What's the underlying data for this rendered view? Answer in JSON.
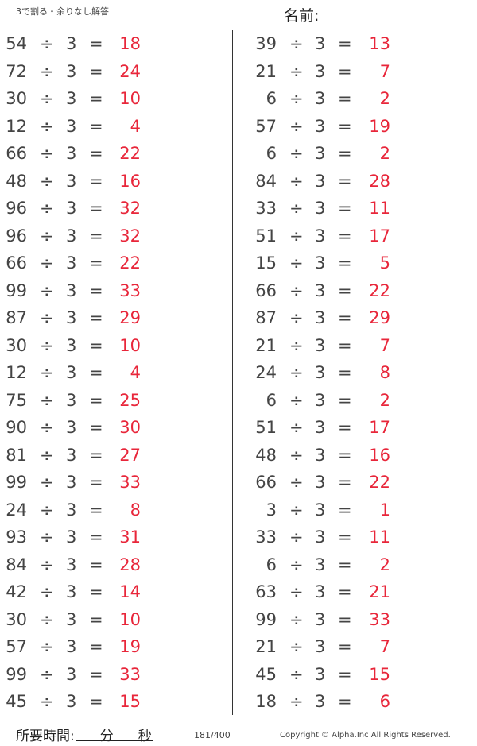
{
  "header": {
    "title": "3で割る・余りなし解答",
    "name_label": "名前:"
  },
  "colors": {
    "problem": "#444444",
    "answer": "#e8263a"
  },
  "divide_symbol": "÷",
  "equals_symbol": "=",
  "left": [
    [
      54,
      3,
      18
    ],
    [
      72,
      3,
      24
    ],
    [
      30,
      3,
      10
    ],
    [
      12,
      3,
      4
    ],
    [
      66,
      3,
      22
    ],
    [
      48,
      3,
      16
    ],
    [
      96,
      3,
      32
    ],
    [
      96,
      3,
      32
    ],
    [
      66,
      3,
      22
    ],
    [
      99,
      3,
      33
    ],
    [
      87,
      3,
      29
    ],
    [
      30,
      3,
      10
    ],
    [
      12,
      3,
      4
    ],
    [
      75,
      3,
      25
    ],
    [
      90,
      3,
      30
    ],
    [
      81,
      3,
      27
    ],
    [
      99,
      3,
      33
    ],
    [
      24,
      3,
      8
    ],
    [
      93,
      3,
      31
    ],
    [
      84,
      3,
      28
    ],
    [
      42,
      3,
      14
    ],
    [
      30,
      3,
      10
    ],
    [
      57,
      3,
      19
    ],
    [
      99,
      3,
      33
    ],
    [
      45,
      3,
      15
    ]
  ],
  "right": [
    [
      39,
      3,
      13
    ],
    [
      21,
      3,
      7
    ],
    [
      6,
      3,
      2
    ],
    [
      57,
      3,
      19
    ],
    [
      6,
      3,
      2
    ],
    [
      84,
      3,
      28
    ],
    [
      33,
      3,
      11
    ],
    [
      51,
      3,
      17
    ],
    [
      15,
      3,
      5
    ],
    [
      66,
      3,
      22
    ],
    [
      87,
      3,
      29
    ],
    [
      21,
      3,
      7
    ],
    [
      24,
      3,
      8
    ],
    [
      6,
      3,
      2
    ],
    [
      51,
      3,
      17
    ],
    [
      48,
      3,
      16
    ],
    [
      66,
      3,
      22
    ],
    [
      3,
      3,
      1
    ],
    [
      33,
      3,
      11
    ],
    [
      6,
      3,
      2
    ],
    [
      63,
      3,
      21
    ],
    [
      99,
      3,
      33
    ],
    [
      21,
      3,
      7
    ],
    [
      45,
      3,
      15
    ],
    [
      18,
      3,
      6
    ]
  ],
  "footer": {
    "time_label": "所要時間:",
    "minutes": "分",
    "seconds": "秒",
    "page": "181/400",
    "copyright": "Copyright ©  Alpha.Inc All Rights Reserved."
  }
}
